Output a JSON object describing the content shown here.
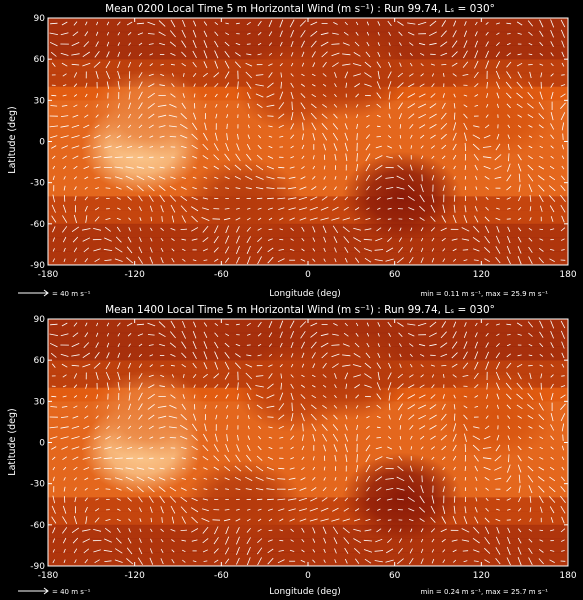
{
  "chart_data": [
    {
      "type": "vector-field",
      "title": "Mean 0200 Local Time 5 m Horizontal Wind (m s⁻¹) : Run 99.74, Lₛ = 030°",
      "xlabel": "Longitude (deg)",
      "ylabel": "Latitude (deg)",
      "xlim": [
        -180,
        180
      ],
      "ylim": [
        -90,
        90
      ],
      "xticks": [
        "-180",
        "-120",
        "-60",
        "0",
        "60",
        "120",
        "180"
      ],
      "yticks": [
        "90",
        "60",
        "30",
        "0",
        "-30",
        "-60",
        "-90"
      ],
      "reference_vector": "= 40 m s⁻¹",
      "stats": "min = 0.11 m s⁻¹, max = 25.9 m s⁻¹",
      "min_speed": 0.11,
      "max_speed": 25.9,
      "features": [
        {
          "lon": -115,
          "lat": -5,
          "level": 0.05
        },
        {
          "lon": -110,
          "lat": 20,
          "level": 0.35
        },
        {
          "lon": 65,
          "lat": -40,
          "level": 1.0
        },
        {
          "lon": 130,
          "lat": 20,
          "level": 0.55
        },
        {
          "lon": -45,
          "lat": -45,
          "level": 0.75
        },
        {
          "lon": -10,
          "lat": 40,
          "level": 0.7
        },
        {
          "lon": 30,
          "lat": 50,
          "level": 0.75
        }
      ]
    },
    {
      "type": "vector-field",
      "title": "Mean 1400 Local Time 5 m Horizontal Wind (m s⁻¹) : Run 99.74, Lₛ = 030°",
      "xlabel": "Longitude (deg)",
      "ylabel": "Latitude (deg)",
      "xlim": [
        -180,
        180
      ],
      "ylim": [
        -90,
        90
      ],
      "xticks": [
        "-180",
        "-120",
        "-60",
        "0",
        "60",
        "120",
        "180"
      ],
      "yticks": [
        "90",
        "60",
        "30",
        "0",
        "-30",
        "-60",
        "-90"
      ],
      "reference_vector": "= 40 m s⁻¹",
      "stats": "min = 0.24 m s⁻¹, max = 25.7 m s⁻¹",
      "min_speed": 0.24,
      "max_speed": 25.7,
      "features": [
        {
          "lon": -115,
          "lat": -5,
          "level": 0.05
        },
        {
          "lon": -110,
          "lat": 20,
          "level": 0.35
        },
        {
          "lon": 65,
          "lat": -40,
          "level": 1.0
        },
        {
          "lon": 130,
          "lat": 20,
          "level": 0.55
        },
        {
          "lon": -45,
          "lat": -45,
          "level": 0.75
        },
        {
          "lon": -10,
          "lat": 40,
          "level": 0.7
        },
        {
          "lon": 30,
          "lat": 50,
          "level": 0.75
        }
      ]
    }
  ],
  "colors": {
    "background": "#000000",
    "dark": "#8a1a08",
    "mid": "#e05a10",
    "light": "#ffd9a0",
    "base": "#e8661a",
    "vector": "#ffffff"
  }
}
